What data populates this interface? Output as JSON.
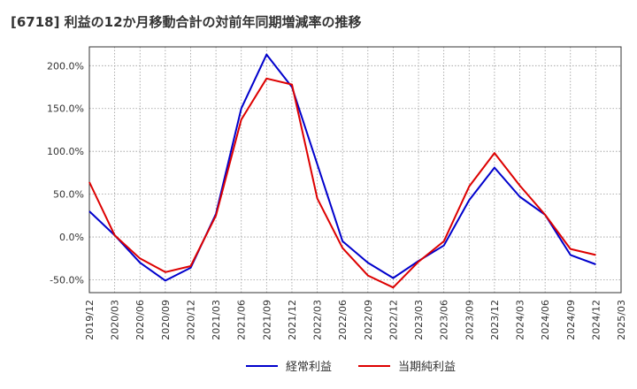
{
  "chart_data": {
    "type": "line",
    "title": "[6718]  利益の12か月移動合計の対前年同期増減率の推移",
    "xlabel": "",
    "ylabel": "",
    "ylim": [
      -65,
      222
    ],
    "yticks": [
      200,
      150,
      100,
      50,
      0,
      -50
    ],
    "ytick_labels": [
      "200.0%",
      "150.0%",
      "100.0%",
      "50.0%",
      "0.0%",
      "-50.0%"
    ],
    "x_tick_labels": [
      "2019/12",
      "2020/03",
      "2020/06",
      "2020/09",
      "2020/12",
      "2021/03",
      "2021/06",
      "2021/09",
      "2021/12",
      "2022/03",
      "2022/06",
      "2022/09",
      "2022/12",
      "2023/03",
      "2023/06",
      "2023/09",
      "2023/12",
      "2024/03",
      "2024/06",
      "2024/09",
      "2024/12",
      "2025/03"
    ],
    "series": [
      {
        "name": "経常利益",
        "color": "#0000cc",
        "values": [
          30,
          2,
          -30,
          -51,
          -36,
          27,
          150,
          213,
          175,
          85,
          -5,
          -30,
          -48,
          -28,
          -10,
          43,
          81,
          47,
          26,
          -21,
          -32
        ]
      },
      {
        "name": "当期純利益",
        "color": "#dd0000",
        "values": [
          64,
          2,
          -25,
          -41,
          -34,
          25,
          137,
          185,
          178,
          45,
          -13,
          -45,
          -59,
          -29,
          -5,
          59,
          98,
          60,
          26,
          -14,
          -21
        ]
      }
    ],
    "legend": [
      "経常利益",
      "当期純利益"
    ],
    "grid": true
  }
}
